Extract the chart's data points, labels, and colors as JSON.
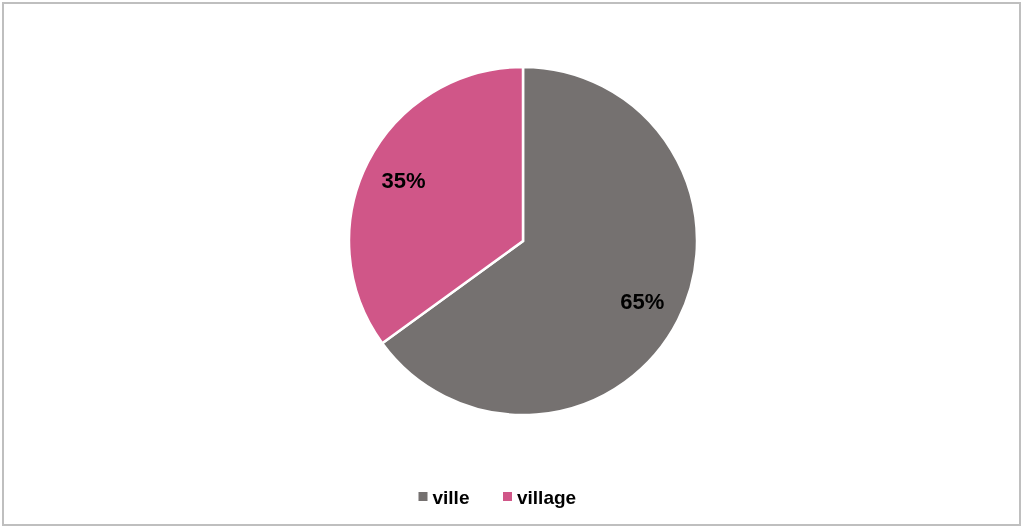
{
  "chart_data": {
    "type": "pie",
    "categories": [
      "ville",
      "village"
    ],
    "values": [
      65,
      35
    ],
    "colors": [
      "#757170",
      "#d05688"
    ],
    "value_labels": [
      "65%",
      "35%"
    ],
    "legend": "bottom"
  }
}
